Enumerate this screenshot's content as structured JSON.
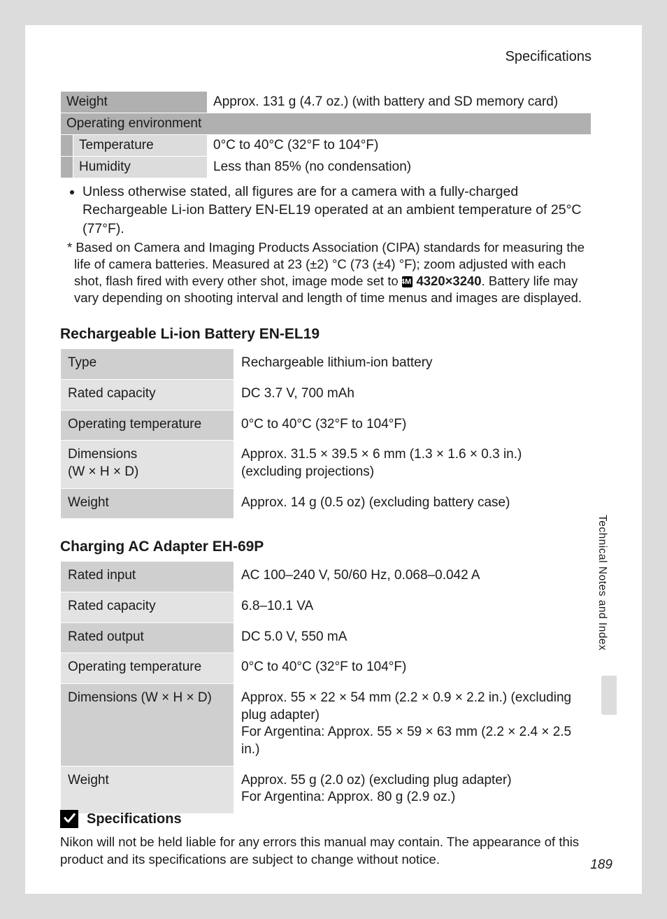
{
  "header": "Specifications",
  "page_number": "189",
  "sidebar_text": "Technical Notes and Index",
  "top_table": {
    "rows": [
      {
        "label": "Weight",
        "level": 1,
        "value": "Approx. 131 g (4.7 oz.) (with battery and SD memory card)"
      },
      {
        "label": "Operating environment",
        "level": 1,
        "value": ""
      },
      {
        "label": "Temperature",
        "level": 2,
        "value": "0°C to 40°C (32°F to 104°F)"
      },
      {
        "label": "Humidity",
        "level": 2,
        "value": "Less than 85% (no condensation)"
      }
    ]
  },
  "bullet_note": "Unless otherwise stated, all figures are for a camera with a fully-charged Rechargeable Li-ion Battery EN-EL19 operated at an ambient temperature of 25°C (77°F).",
  "asterisk_note": {
    "before": "* Based on Camera and Imaging Products Association (CIPA) standards for measuring the life of camera batteries. Measured at 23 (±2) °C (73 (±4) °F); zoom adjusted with each shot, flash fired with every other shot, image mode set to ",
    "badge": "14M",
    "bold": "4320×3240",
    "after": ". Battery life may vary depending on shooting interval and length of time menus and images are displayed."
  },
  "battery_section": {
    "title": "Rechargeable Li-ion Battery EN-EL19",
    "rows": [
      {
        "label": "Type",
        "value": "Rechargeable lithium-ion battery"
      },
      {
        "label": "Rated capacity",
        "value": "DC 3.7 V, 700 mAh"
      },
      {
        "label": "Operating temperature",
        "value": "0°C to 40°C (32°F to 104°F)"
      },
      {
        "label": "Dimensions\n(W × H × D)",
        "value": "Approx. 31.5 × 39.5 × 6 mm (1.3 × 1.6 × 0.3 in.) (excluding projections)"
      },
      {
        "label": "Weight",
        "value": "Approx. 14 g (0.5 oz) (excluding battery case)"
      }
    ]
  },
  "adapter_section": {
    "title": "Charging AC Adapter EH-69P",
    "rows": [
      {
        "label": "Rated input",
        "value": "AC 100–240 V, 50/60 Hz, 0.068–0.042 A"
      },
      {
        "label": "Rated capacity",
        "value": "6.8–10.1 VA"
      },
      {
        "label": "Rated output",
        "value": "DC 5.0 V, 550 mA"
      },
      {
        "label": "Operating temperature",
        "value": "0°C to 40°C (32°F to 104°F)"
      },
      {
        "label": "Dimensions (W × H × D)",
        "value": "Approx. 55 × 22 × 54 mm (2.2 × 0.9 × 2.2 in.) (excluding plug adapter)\nFor Argentina: Approx. 55 × 59 × 63 mm (2.2 × 2.4 × 2.5 in.)"
      },
      {
        "label": "Weight",
        "value": "Approx. 55 g (2.0 oz) (excluding plug adapter)\nFor Argentina: Approx. 80 g (2.9 oz.)"
      }
    ]
  },
  "footer": {
    "heading": "Specifications",
    "text": "Nikon will not be held liable for any errors this manual may contain. The appearance of this product and its specifications are subject to change without notice."
  }
}
